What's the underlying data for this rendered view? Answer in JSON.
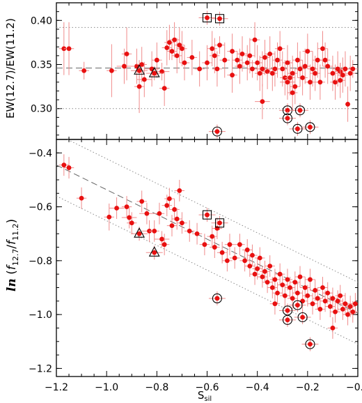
{
  "chart_data": [
    {
      "type": "scatter",
      "xlabel": "S_sil",
      "ylabel": "EW(12.7)/EW(11.2)",
      "xlim": [
        -1.2,
        0.0
      ],
      "ylim": [
        0.265,
        0.42
      ],
      "xticks": [
        "−1.2",
        "−1.0",
        "−0.8",
        "−0.6",
        "−0.4",
        "−0.2",
        "−0.0"
      ],
      "yticks": [
        "0.30",
        "0.35",
        "0.40"
      ],
      "ytick_values": [
        0.3,
        0.35,
        0.4
      ],
      "reference_lines": [
        {
          "style": "dotted",
          "y": 0.392
        },
        {
          "style": "dashed",
          "y": 0.346
        },
        {
          "style": "dotted",
          "y": 0.3
        }
      ],
      "points": [
        [
          -1.17,
          0.368,
          0.02,
          0.03
        ],
        [
          -1.15,
          0.368,
          0.02,
          0.03
        ],
        [
          -1.09,
          0.343,
          0.02,
          0.01
        ],
        [
          -0.98,
          0.343,
          0.02,
          0.03
        ],
        [
          -0.93,
          0.348,
          0.03,
          0.02
        ],
        [
          -0.92,
          0.362,
          0.02,
          0.03
        ],
        [
          -0.88,
          0.348,
          0.03,
          0.02
        ],
        [
          -0.87,
          0.325,
          0.02,
          0.03
        ],
        [
          -0.86,
          0.35,
          0.02,
          0.02
        ],
        [
          -0.85,
          0.333,
          0.03,
          0.02
        ],
        [
          -0.82,
          0.345,
          0.03,
          0.02
        ],
        [
          -0.8,
          0.355,
          0.02,
          0.02
        ],
        [
          -0.78,
          0.342,
          0.03,
          0.01
        ],
        [
          -0.77,
          0.323,
          0.02,
          0.02
        ],
        [
          -0.76,
          0.369,
          0.02,
          0.02
        ],
        [
          -0.75,
          0.375,
          0.02,
          0.02
        ],
        [
          -0.74,
          0.365,
          0.02,
          0.01
        ],
        [
          -0.73,
          0.378,
          0.02,
          0.02
        ],
        [
          -0.72,
          0.36,
          0.02,
          0.02
        ],
        [
          -0.71,
          0.372,
          0.02,
          0.02
        ],
        [
          -0.7,
          0.368,
          0.02,
          0.02
        ],
        [
          -0.69,
          0.352,
          0.02,
          0.02
        ],
        [
          -0.66,
          0.358,
          0.02,
          0.02
        ],
        [
          -0.63,
          0.345,
          0.02,
          0.02
        ],
        [
          -0.6,
          0.352,
          0.02,
          0.02
        ],
        [
          -0.58,
          0.368,
          0.02,
          0.02
        ],
        [
          -0.57,
          0.36,
          0.02,
          0.02
        ],
        [
          -0.56,
          0.345,
          0.02,
          0.02
        ],
        [
          -0.55,
          0.372,
          0.02,
          0.01
        ],
        [
          -0.53,
          0.355,
          0.02,
          0.02
        ],
        [
          -0.5,
          0.365,
          0.02,
          0.02
        ],
        [
          -0.48,
          0.355,
          0.02,
          0.01
        ],
        [
          -0.47,
          0.348,
          0.02,
          0.02
        ],
        [
          -0.46,
          0.362,
          0.02,
          0.02
        ],
        [
          -0.44,
          0.352,
          0.02,
          0.02
        ],
        [
          -0.43,
          0.36,
          0.02,
          0.02
        ],
        [
          -0.42,
          0.345,
          0.02,
          0.01
        ],
        [
          -0.41,
          0.378,
          0.02,
          0.02
        ],
        [
          -0.4,
          0.352,
          0.02,
          0.02
        ],
        [
          -0.39,
          0.34,
          0.02,
          0.02
        ],
        [
          -0.38,
          0.345,
          0.03,
          0.02
        ],
        [
          -0.37,
          0.358,
          0.02,
          0.02
        ],
        [
          -0.36,
          0.342,
          0.02,
          0.02
        ],
        [
          -0.35,
          0.362,
          0.02,
          0.02
        ],
        [
          -0.34,
          0.34,
          0.02,
          0.02
        ],
        [
          -0.33,
          0.345,
          0.02,
          0.02
        ],
        [
          -0.32,
          0.355,
          0.02,
          0.02
        ],
        [
          -0.31,
          0.368,
          0.02,
          0.02
        ],
        [
          -0.3,
          0.345,
          0.02,
          0.02
        ],
        [
          -0.29,
          0.335,
          0.02,
          0.02
        ],
        [
          -0.28,
          0.352,
          0.02,
          0.02
        ],
        [
          -0.27,
          0.335,
          0.02,
          0.02
        ],
        [
          -0.26,
          0.34,
          0.02,
          0.02
        ],
        [
          -0.25,
          0.325,
          0.02,
          0.02
        ],
        [
          -0.24,
          0.355,
          0.02,
          0.02
        ],
        [
          -0.23,
          0.345,
          0.02,
          0.02
        ],
        [
          -0.22,
          0.335,
          0.02,
          0.02
        ],
        [
          -0.21,
          0.348,
          0.02,
          0.02
        ],
        [
          -0.2,
          0.365,
          0.02,
          0.02
        ],
        [
          -0.19,
          0.33,
          0.02,
          0.02
        ],
        [
          -0.18,
          0.345,
          0.02,
          0.02
        ],
        [
          -0.17,
          0.34,
          0.02,
          0.02
        ],
        [
          -0.16,
          0.355,
          0.02,
          0.02
        ],
        [
          -0.15,
          0.33,
          0.02,
          0.02
        ],
        [
          -0.14,
          0.368,
          0.02,
          0.02
        ],
        [
          -0.13,
          0.355,
          0.02,
          0.02
        ],
        [
          -0.12,
          0.348,
          0.02,
          0.02
        ],
        [
          -0.1,
          0.34,
          0.02,
          0.02
        ],
        [
          -0.09,
          0.33,
          0.02,
          0.02
        ],
        [
          -0.08,
          0.345,
          0.02,
          0.02
        ],
        [
          -0.07,
          0.342,
          0.02,
          0.01
        ],
        [
          -0.06,
          0.338,
          0.02,
          0.02
        ],
        [
          -0.05,
          0.345,
          0.02,
          0.02
        ],
        [
          -0.04,
          0.305,
          0.01,
          0.02
        ],
        [
          -0.03,
          0.34,
          0.02,
          0.02
        ],
        [
          -0.02,
          0.345,
          0.02,
          0.01
        ],
        [
          -0.38,
          0.308,
          0.03,
          0.02
        ],
        [
          -0.28,
          0.33,
          0.03,
          0.02
        ],
        [
          -0.26,
          0.318,
          0.02,
          0.02
        ],
        [
          -0.5,
          0.338,
          0.02,
          0.02
        ],
        [
          -0.07,
          0.332,
          0.02,
          0.02
        ]
      ],
      "marked": [
        {
          "shape": "square",
          "x": -0.6,
          "y": 0.403
        },
        {
          "shape": "square",
          "x": -0.55,
          "y": 0.402
        },
        {
          "shape": "triangle",
          "x": -0.87,
          "y": 0.343
        },
        {
          "shape": "triangle",
          "x": -0.81,
          "y": 0.34
        },
        {
          "shape": "circle",
          "x": -0.56,
          "y": 0.274
        },
        {
          "shape": "circle",
          "x": -0.28,
          "y": 0.298
        },
        {
          "shape": "circle",
          "x": -0.28,
          "y": 0.289
        },
        {
          "shape": "circle",
          "x": -0.23,
          "y": 0.298
        },
        {
          "shape": "circle",
          "x": -0.24,
          "y": 0.277
        },
        {
          "shape": "circle",
          "x": -0.19,
          "y": 0.279
        }
      ]
    },
    {
      "type": "scatter",
      "xlabel": "S_sil",
      "ylabel": "ln (f_12.7/f_11.2)",
      "xlim": [
        -1.2,
        0.0
      ],
      "ylim": [
        -1.23,
        -0.35
      ],
      "xticks": [
        "−1.2",
        "−1.0",
        "−0.8",
        "−0.6",
        "−0.4",
        "−0.2",
        "−0.0"
      ],
      "yticks": [
        "−0.4",
        "−0.6",
        "−0.8",
        "−1.0",
        "−1.2"
      ],
      "ytick_values": [
        -0.4,
        -0.6,
        -0.8,
        -1.0,
        -1.2
      ],
      "reference_lines": [
        {
          "style": "dotted",
          "x0": -1.2,
          "y0": -0.33,
          "x1": 0.0,
          "y1": -0.88
        },
        {
          "style": "dashed",
          "x0": -1.2,
          "y0": -0.445,
          "x1": 0.0,
          "y1": -0.995
        },
        {
          "style": "dotted",
          "x0": -1.2,
          "y0": -0.56,
          "x1": 0.0,
          "y1": -1.11
        }
      ],
      "points": [
        [
          -1.17,
          -0.445,
          0.02,
          0.04
        ],
        [
          -1.15,
          -0.455,
          0.02,
          0.04
        ],
        [
          -1.1,
          -0.568,
          0.02,
          0.04
        ],
        [
          -0.99,
          -0.638,
          0.02,
          0.05
        ],
        [
          -0.96,
          -0.605,
          0.03,
          0.04
        ],
        [
          -0.92,
          -0.6,
          0.02,
          0.04
        ],
        [
          -0.91,
          -0.64,
          0.03,
          0.04
        ],
        [
          -0.9,
          -0.66,
          0.02,
          0.04
        ],
        [
          -0.86,
          -0.58,
          0.02,
          0.04
        ],
        [
          -0.84,
          -0.625,
          0.03,
          0.04
        ],
        [
          -0.83,
          -0.69,
          0.03,
          0.04
        ],
        [
          -0.81,
          -0.69,
          0.02,
          0.04
        ],
        [
          -0.79,
          -0.625,
          0.02,
          0.04
        ],
        [
          -0.78,
          -0.72,
          0.03,
          0.03
        ],
        [
          -0.77,
          -0.74,
          0.02,
          0.04
        ],
        [
          -0.76,
          -0.595,
          0.02,
          0.04
        ],
        [
          -0.75,
          -0.57,
          0.02,
          0.04
        ],
        [
          -0.74,
          -0.67,
          0.02,
          0.04
        ],
        [
          -0.73,
          -0.61,
          0.02,
          0.04
        ],
        [
          -0.72,
          -0.645,
          0.02,
          0.04
        ],
        [
          -0.71,
          -0.54,
          0.02,
          0.04
        ],
        [
          -0.7,
          -0.66,
          0.02,
          0.04
        ],
        [
          -0.67,
          -0.69,
          0.02,
          0.04
        ],
        [
          -0.64,
          -0.7,
          0.02,
          0.04
        ],
        [
          -0.61,
          -0.74,
          0.02,
          0.04
        ],
        [
          -0.58,
          -0.71,
          0.02,
          0.04
        ],
        [
          -0.57,
          -0.75,
          0.02,
          0.04
        ],
        [
          -0.56,
          -0.68,
          0.02,
          0.04
        ],
        [
          -0.54,
          -0.77,
          0.02,
          0.04
        ],
        [
          -0.52,
          -0.8,
          0.02,
          0.04
        ],
        [
          -0.51,
          -0.74,
          0.02,
          0.04
        ],
        [
          -0.49,
          -0.79,
          0.02,
          0.04
        ],
        [
          -0.47,
          -0.74,
          0.02,
          0.04
        ],
        [
          -0.45,
          -0.8,
          0.02,
          0.04
        ],
        [
          -0.44,
          -0.76,
          0.02,
          0.04
        ],
        [
          -0.43,
          -0.82,
          0.02,
          0.04
        ],
        [
          -0.42,
          -0.78,
          0.02,
          0.04
        ],
        [
          -0.41,
          -0.85,
          0.02,
          0.04
        ],
        [
          -0.4,
          -0.83,
          0.02,
          0.04
        ],
        [
          -0.39,
          -0.79,
          0.02,
          0.04
        ],
        [
          -0.38,
          -0.86,
          0.02,
          0.04
        ],
        [
          -0.37,
          -0.84,
          0.02,
          0.04
        ],
        [
          -0.36,
          -0.88,
          0.02,
          0.04
        ],
        [
          -0.35,
          -0.82,
          0.02,
          0.04
        ],
        [
          -0.34,
          -0.9,
          0.02,
          0.04
        ],
        [
          -0.33,
          -0.87,
          0.02,
          0.04
        ],
        [
          -0.32,
          -0.92,
          0.02,
          0.04
        ],
        [
          -0.31,
          -0.85,
          0.02,
          0.04
        ],
        [
          -0.3,
          -0.89,
          0.02,
          0.04
        ],
        [
          -0.29,
          -0.93,
          0.02,
          0.04
        ],
        [
          -0.28,
          -0.87,
          0.02,
          0.04
        ],
        [
          -0.27,
          -0.9,
          0.02,
          0.04
        ],
        [
          -0.26,
          -0.94,
          0.02,
          0.04
        ],
        [
          -0.25,
          -0.88,
          0.02,
          0.04
        ],
        [
          -0.24,
          -0.92,
          0.02,
          0.04
        ],
        [
          -0.23,
          -0.86,
          0.02,
          0.04
        ],
        [
          -0.22,
          -0.95,
          0.02,
          0.04
        ],
        [
          -0.21,
          -0.9,
          0.02,
          0.04
        ],
        [
          -0.2,
          -0.93,
          0.02,
          0.04
        ],
        [
          -0.19,
          -0.87,
          0.02,
          0.04
        ],
        [
          -0.18,
          -0.96,
          0.02,
          0.04
        ],
        [
          -0.17,
          -0.91,
          0.02,
          0.04
        ],
        [
          -0.16,
          -0.94,
          0.02,
          0.04
        ],
        [
          -0.15,
          -0.98,
          0.02,
          0.04
        ],
        [
          -0.14,
          -0.9,
          0.02,
          0.04
        ],
        [
          -0.13,
          -0.95,
          0.02,
          0.04
        ],
        [
          -0.12,
          -0.92,
          0.02,
          0.04
        ],
        [
          -0.11,
          -0.97,
          0.02,
          0.04
        ],
        [
          -0.1,
          -0.94,
          0.02,
          0.04
        ],
        [
          -0.09,
          -0.99,
          0.02,
          0.04
        ],
        [
          -0.08,
          -0.95,
          0.02,
          0.04
        ],
        [
          -0.07,
          -0.93,
          0.02,
          0.04
        ],
        [
          -0.06,
          -0.98,
          0.02,
          0.04
        ],
        [
          -0.05,
          -0.96,
          0.02,
          0.04
        ],
        [
          -0.04,
          -1.0,
          0.02,
          0.04
        ],
        [
          -0.03,
          -0.97,
          0.02,
          0.04
        ],
        [
          -0.02,
          -0.99,
          0.02,
          0.04
        ],
        [
          -0.01,
          -0.96,
          0.02,
          0.04
        ],
        [
          -0.1,
          -1.05,
          0.02,
          0.04
        ],
        [
          -0.33,
          -0.96,
          0.02,
          0.04
        ]
      ],
      "marked": [
        {
          "shape": "square",
          "x": -0.6,
          "y": -0.63
        },
        {
          "shape": "square",
          "x": -0.55,
          "y": -0.66
        },
        {
          "shape": "triangle",
          "x": -0.87,
          "y": -0.7
        },
        {
          "shape": "triangle",
          "x": -0.81,
          "y": -0.77
        },
        {
          "shape": "circle",
          "x": -0.56,
          "y": -0.94
        },
        {
          "shape": "circle",
          "x": -0.28,
          "y": -0.985
        },
        {
          "shape": "circle",
          "x": -0.28,
          "y": -1.02
        },
        {
          "shape": "circle",
          "x": -0.24,
          "y": -0.965
        },
        {
          "shape": "circle",
          "x": -0.22,
          "y": -1.01
        },
        {
          "shape": "circle",
          "x": -0.19,
          "y": -1.11
        }
      ]
    }
  ],
  "colors": {
    "points": "#e81010",
    "error_bars": "#f08a8a",
    "reference_lines": "#777777",
    "markers": "#000000"
  }
}
